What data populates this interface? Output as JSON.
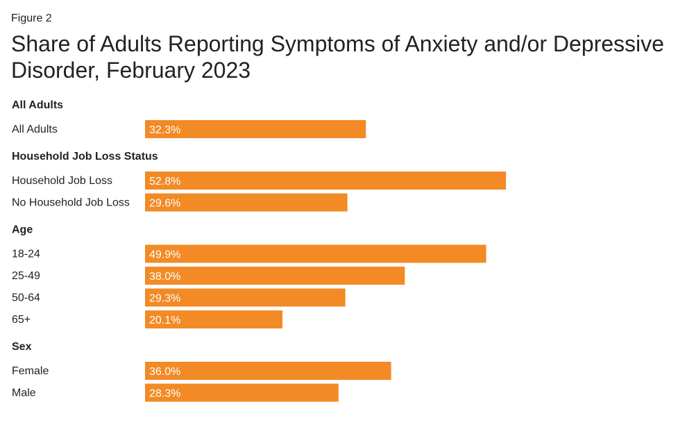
{
  "figure_label": "Figure 2",
  "chart_data": {
    "type": "bar",
    "orientation": "horizontal",
    "title": "Share of Adults Reporting Symptoms of Anxiety and/or Depressive Disorder, February 2023",
    "xlim": [
      0,
      100
    ],
    "grid": false,
    "value_suffix": "%",
    "bar_color": "#F28A25",
    "groups": [
      {
        "heading": "All Adults",
        "rows": [
          {
            "label": "All Adults",
            "value": 32.3,
            "value_label": "32.3%"
          }
        ]
      },
      {
        "heading": "Household Job Loss Status",
        "rows": [
          {
            "label": "Household Job Loss",
            "value": 52.8,
            "value_label": "52.8%"
          },
          {
            "label": "No Household Job Loss",
            "value": 29.6,
            "value_label": "29.6%"
          }
        ]
      },
      {
        "heading": "Age",
        "rows": [
          {
            "label": "18-24",
            "value": 49.9,
            "value_label": "49.9%"
          },
          {
            "label": "25-49",
            "value": 38.0,
            "value_label": "38.0%"
          },
          {
            "label": "50-64",
            "value": 29.3,
            "value_label": "29.3%"
          },
          {
            "label": "65+",
            "value": 20.1,
            "value_label": "20.1%"
          }
        ]
      },
      {
        "heading": "Sex",
        "rows": [
          {
            "label": "Female",
            "value": 36.0,
            "value_label": "36.0%"
          },
          {
            "label": "Male",
            "value": 28.3,
            "value_label": "28.3%"
          }
        ]
      }
    ]
  }
}
